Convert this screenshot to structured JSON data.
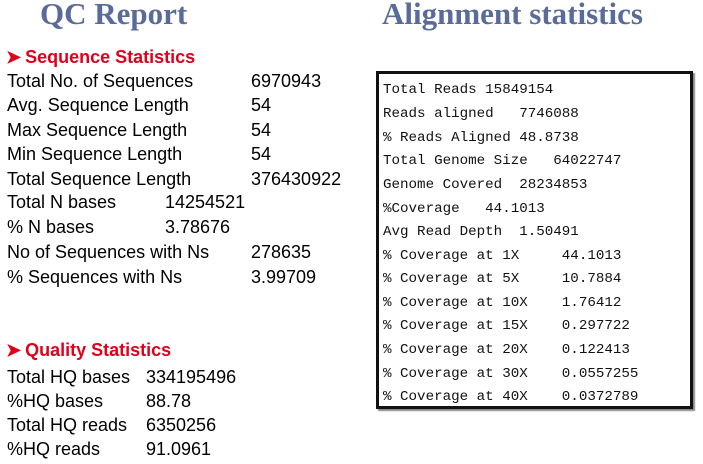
{
  "titles": {
    "qc": "QC Report",
    "alignment": "Alignment statistics"
  },
  "bullet_icon": "arrow-bullet-icon",
  "sequence_statistics": {
    "heading": "Sequence Statistics",
    "rows": [
      {
        "label": "Total No. of Sequences",
        "value": "6970943"
      },
      {
        "label": "Avg. Sequence Length",
        "value": "54"
      },
      {
        "label": "Max Sequence Length",
        "value": "54"
      },
      {
        "label": "Min Sequence Length",
        "value": "54"
      },
      {
        "label": "Total Sequence Length",
        "value": "376430922"
      },
      {
        "label": "Total N bases",
        "value": "14254521"
      },
      {
        "label": "% N bases",
        "value": "3.78676"
      },
      {
        "label": "No of Sequences with Ns",
        "value": "278635"
      },
      {
        "label": "% Sequences with Ns",
        "value": "3.99709"
      }
    ]
  },
  "quality_statistics": {
    "heading": "Quality Statistics",
    "rows": [
      {
        "label": "Total HQ bases",
        "value": "334195496"
      },
      {
        "label": "%HQ bases",
        "value": "88.78"
      },
      {
        "label": "Total HQ reads",
        "value": "6350256"
      },
      {
        "label": "%HQ reads",
        "value": "91.0961"
      }
    ]
  },
  "alignment_lines": [
    "Total Reads 15849154",
    "Reads aligned   7746088",
    "% Reads Aligned 48.8738",
    "Total Genome Size   64022747",
    "Genome Covered  28234853",
    "%Coverage   44.1013",
    "Avg Read Depth  1.50491",
    "% Coverage at 1X     44.1013",
    "% Coverage at 5X     10.7884",
    "% Coverage at 10X    1.76412",
    "% Coverage at 15X    0.297722",
    "% Coverage at 20X    0.122413",
    "% Coverage at 30X    0.0557255",
    "% Coverage at 40X    0.0372789"
  ]
}
